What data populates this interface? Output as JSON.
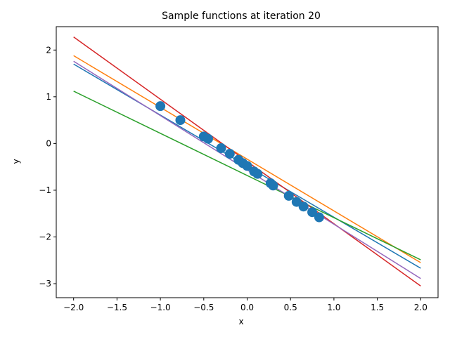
{
  "chart_data": {
    "type": "line",
    "title": "Sample functions at iteration 20",
    "xlabel": "x",
    "ylabel": "y",
    "xlim": [
      -2.2,
      2.2
    ],
    "ylim": [
      -3.3,
      2.5
    ],
    "xticks": [
      -2.0,
      -1.5,
      -1.0,
      -0.5,
      0.0,
      0.5,
      1.0,
      1.5,
      2.0
    ],
    "xtick_labels": [
      "−2.0",
      "−1.5",
      "−1.0",
      "−0.5",
      "0.0",
      "0.5",
      "1.0",
      "1.5",
      "2.0"
    ],
    "yticks": [
      2,
      1,
      0,
      -1,
      -2,
      -3
    ],
    "ytick_labels": [
      "2",
      "1",
      "0",
      "−1",
      "−2",
      "−3"
    ],
    "grid": false,
    "legend": "none",
    "series": [
      {
        "color": "#1f77b4",
        "x": [
          -2.0,
          2.0
        ],
        "y": [
          1.7,
          -2.67
        ]
      },
      {
        "color": "#ff7f0e",
        "x": [
          -2.0,
          2.0
        ],
        "y": [
          1.88,
          -2.55
        ]
      },
      {
        "color": "#2ca02c",
        "x": [
          -2.0,
          2.0
        ],
        "y": [
          1.12,
          -2.49
        ]
      },
      {
        "color": "#d62728",
        "x": [
          -2.0,
          2.0
        ],
        "y": [
          2.28,
          -3.05
        ]
      },
      {
        "color": "#9467bd",
        "x": [
          -2.0,
          2.0
        ],
        "y": [
          1.76,
          -2.89
        ]
      }
    ],
    "scatter": {
      "color": "#1f77b4",
      "x": [
        -1.0,
        -0.77,
        -0.5,
        -0.45,
        -0.3,
        -0.2,
        -0.1,
        -0.05,
        0.0,
        0.08,
        0.12,
        0.27,
        0.3,
        0.48,
        0.57,
        0.65,
        0.75,
        0.83
      ],
      "y": [
        0.8,
        0.5,
        0.15,
        0.1,
        -0.1,
        -0.22,
        -0.35,
        -0.42,
        -0.48,
        -0.6,
        -0.65,
        -0.85,
        -0.9,
        -1.12,
        -1.25,
        -1.35,
        -1.47,
        -1.58
      ]
    }
  }
}
